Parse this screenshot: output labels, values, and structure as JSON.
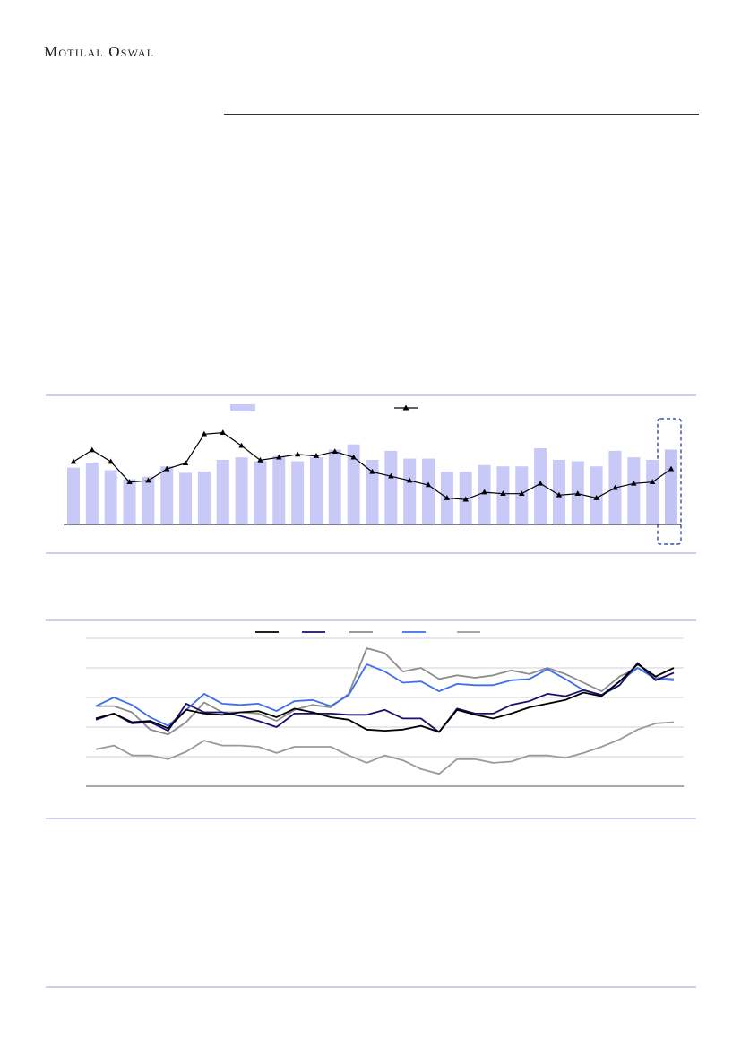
{
  "header": {
    "brand": "Motilal Oswal"
  },
  "colors": {
    "bar": "#c9c9f7",
    "line_dark": "#000000",
    "navy": "#1a0f6e",
    "gray": "#8c8c8c",
    "blue": "#3d6ef0",
    "rule": "#8a8ac8",
    "highlight_border": "#1a2a9a"
  },
  "chart_data": [
    {
      "type": "bar",
      "series": [
        {
          "name": "",
          "kind": "bar",
          "values": [
            44,
            48,
            42,
            35,
            37,
            45,
            40,
            41,
            50,
            52,
            49,
            53,
            49,
            52,
            58,
            62,
            50,
            57,
            51,
            51,
            41,
            41,
            46,
            45,
            45,
            59,
            50,
            49,
            45,
            57,
            52,
            50,
            58
          ]
        },
        {
          "name": "",
          "kind": "line-triangle",
          "values": [
            58,
            66,
            58,
            44,
            45,
            53,
            57,
            77,
            78,
            69,
            59,
            61,
            63,
            62,
            65,
            61,
            51,
            48,
            45,
            42,
            33,
            32,
            37,
            36,
            36,
            43,
            35,
            36,
            33,
            40,
            43,
            44,
            53
          ]
        }
      ],
      "highlight_last": true
    },
    {
      "type": "line",
      "series": [
        {
          "name": "",
          "color": "#000000",
          "values": [
            50,
            54,
            47,
            48,
            42,
            57,
            54,
            53,
            55,
            56,
            51,
            58,
            55,
            51,
            49,
            41,
            40,
            41,
            44,
            39,
            57,
            53,
            50,
            54,
            59,
            62,
            65,
            71,
            68,
            80,
            94,
            84,
            91
          ]
        },
        {
          "name": "",
          "color": "#1a0f6e",
          "values": [
            49,
            54,
            46,
            47,
            40,
            62,
            55,
            55,
            52,
            48,
            43,
            54,
            54,
            54,
            53,
            53,
            57,
            50,
            50,
            39,
            58,
            54,
            54,
            61,
            64,
            70,
            68,
            73,
            69,
            77,
            95,
            81,
            87
          ]
        },
        {
          "name": "",
          "color": "#8c8c8c",
          "values": [
            60,
            60,
            55,
            41,
            37,
            47,
            63,
            55,
            55,
            54,
            48,
            57,
            61,
            59,
            70,
            107,
            103,
            88,
            91,
            82,
            85,
            83,
            85,
            89,
            86,
            91,
            86,
            79,
            72,
            84,
            91,
            83,
            82
          ]
        },
        {
          "name": "",
          "color": "#3d6ef0",
          "values": [
            60,
            67,
            61,
            51,
            44,
            57,
            70,
            62,
            61,
            62,
            56,
            64,
            65,
            60,
            69,
            94,
            88,
            79,
            80,
            72,
            78,
            77,
            77,
            81,
            82,
            90,
            82,
            73,
            69,
            80,
            91,
            82,
            81
          ]
        },
        {
          "name": "",
          "color": "#9a9a9a",
          "values": [
            25,
            28,
            20,
            20,
            17,
            23,
            32,
            28,
            28,
            27,
            22,
            27,
            27,
            27,
            20,
            14,
            20,
            16,
            9,
            5,
            17,
            17,
            14,
            15,
            20,
            20,
            18,
            22,
            27,
            33,
            41,
            46,
            47
          ]
        }
      ],
      "ylim": [
        -5,
        115
      ]
    }
  ]
}
